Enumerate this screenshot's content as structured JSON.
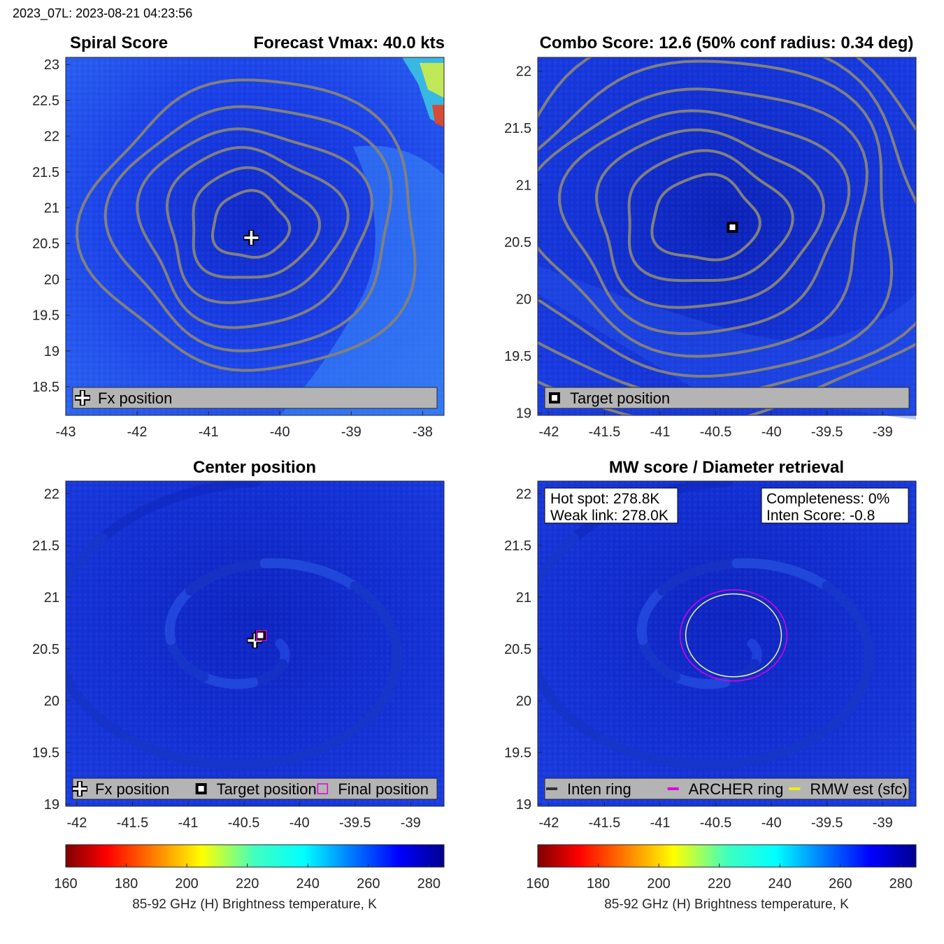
{
  "suptitle": "2023_07L: 2023-08-21 04:23:56",
  "colors": {
    "contour": "#808080",
    "ink": "#000000",
    "legend_bg": "#b4b4b4",
    "archer": "#e000e0",
    "rmw": "#f0f000",
    "final_pos": "#e000e0",
    "background_field": "#1a2fd8"
  },
  "panels": [
    {
      "id": "spiral",
      "title_left": "Spiral Score",
      "title_right": "Forecast Vmax: 40.0 kts",
      "xlim": [
        -43,
        -37.7
      ],
      "ylim": [
        18.1,
        23.1
      ],
      "xticks": [
        -43,
        -42,
        -41,
        -40,
        -39,
        -38
      ],
      "yticks": [
        18.5,
        19,
        19.5,
        20,
        20.5,
        21,
        21.5,
        22,
        22.5,
        23
      ],
      "center": [
        -40.45,
        20.75
      ],
      "markers": [
        {
          "type": "plus",
          "x": -40.4,
          "y": 20.58
        }
      ],
      "legend": [
        {
          "symbol": "plus",
          "label": "Fx position"
        }
      ]
    },
    {
      "id": "combo",
      "title_center": "Combo Score: 12.6  (50% conf radius: 0.34 deg)",
      "xlim": [
        -42.1,
        -38.7
      ],
      "ylim": [
        18.98,
        22.12
      ],
      "xticks": [
        -42,
        -41.5,
        -41,
        -40.5,
        -40,
        -39.5,
        -39
      ],
      "yticks": [
        19,
        19.5,
        20,
        20.5,
        21,
        21.5,
        22
      ],
      "center": [
        -40.6,
        20.7
      ],
      "markers": [
        {
          "type": "square",
          "x": -40.35,
          "y": 20.63
        }
      ],
      "legend": [
        {
          "symbol": "square",
          "label": "Target position"
        }
      ]
    },
    {
      "id": "center",
      "title_center": "Center position",
      "xlim": [
        -42.1,
        -38.7
      ],
      "ylim": [
        18.98,
        22.12
      ],
      "xticks": [
        -42,
        -41.5,
        -41,
        -40.5,
        -40,
        -39.5,
        -39
      ],
      "yticks": [
        19,
        19.5,
        20,
        20.5,
        21,
        21.5,
        22
      ],
      "markers": [
        {
          "type": "plus",
          "x": -40.4,
          "y": 20.58
        },
        {
          "type": "square",
          "x": -40.35,
          "y": 20.63
        },
        {
          "type": "final",
          "x": -40.34,
          "y": 20.63
        }
      ],
      "legend": [
        {
          "symbol": "plus",
          "label": "Fx position"
        },
        {
          "symbol": "square",
          "label": "Target position"
        },
        {
          "symbol": "final",
          "label": "Final position"
        }
      ],
      "colorbar": {
        "ticks": [
          160,
          180,
          200,
          220,
          240,
          260,
          280
        ],
        "range": [
          160,
          285
        ],
        "label": "85-92 GHz (H) Brightness temperature, K"
      }
    },
    {
      "id": "mw",
      "title_center": "MW score / Diameter retrieval",
      "xlim": [
        -42.1,
        -38.7
      ],
      "ylim": [
        18.98,
        22.12
      ],
      "xticks": [
        -42,
        -41.5,
        -41,
        -40.5,
        -40,
        -39.5,
        -39
      ],
      "yticks": [
        19,
        19.5,
        20,
        20.5,
        21,
        21.5,
        22
      ],
      "info_left": [
        "Hot spot: 278.8K",
        "Weak link: 278.0K"
      ],
      "info_right": [
        "Completeness: 0%",
        "Inten Score: -0.8"
      ],
      "rings": [
        {
          "name": "ARCHER ring",
          "cx": -40.34,
          "cy": 20.63,
          "rx": 0.48,
          "ry": 0.44
        },
        {
          "name": "RMW est (sfc)",
          "cx": -40.34,
          "cy": 20.63,
          "rx": 0.43,
          "ry": 0.4
        }
      ],
      "legend": [
        {
          "symbol": "line-dark",
          "label": "Inten ring"
        },
        {
          "symbol": "line-magenta",
          "label": "ARCHER ring"
        },
        {
          "symbol": "line-yellow",
          "label": "RMW est (sfc)"
        }
      ],
      "colorbar": {
        "ticks": [
          160,
          180,
          200,
          220,
          240,
          260,
          280
        ],
        "range": [
          160,
          285
        ],
        "label": "85-92 GHz (H) Brightness temperature, K"
      }
    }
  ],
  "chart_data": [
    {
      "type": "heatmap",
      "title": "Spiral Score",
      "subtitle": "Forecast Vmax: 40.0 kts",
      "xlabel": "",
      "ylabel": "",
      "xlim": [
        -43,
        -37.7
      ],
      "ylim": [
        18.1,
        23.1
      ],
      "overlay": "spiral score contours",
      "points": [
        {
          "name": "Fx position",
          "x": -40.4,
          "y": 20.58
        }
      ]
    },
    {
      "type": "heatmap",
      "title": "Combo Score: 12.6  (50% conf radius: 0.34 deg)",
      "xlim": [
        -42.1,
        -38.7
      ],
      "ylim": [
        18.98,
        22.12
      ],
      "overlay": "combo score contours",
      "points": [
        {
          "name": "Target position",
          "x": -40.35,
          "y": 20.63
        }
      ]
    },
    {
      "type": "heatmap",
      "title": "Center position",
      "xlim": [
        -42.1,
        -38.7
      ],
      "ylim": [
        18.98,
        22.12
      ],
      "points": [
        {
          "name": "Fx position",
          "x": -40.4,
          "y": 20.58
        },
        {
          "name": "Target position",
          "x": -40.35,
          "y": 20.63
        },
        {
          "name": "Final position",
          "x": -40.34,
          "y": 20.63
        }
      ],
      "colorbar_range": [
        160,
        285
      ],
      "colorbar_label": "85-92 GHz (H) Brightness temperature, K"
    },
    {
      "type": "heatmap",
      "title": "MW score / Diameter retrieval",
      "xlim": [
        -42.1,
        -38.7
      ],
      "ylim": [
        18.98,
        22.12
      ],
      "annotations": [
        "Hot spot: 278.8K",
        "Weak link: 278.0K",
        "Completeness: 0%",
        "Inten Score: -0.8"
      ],
      "series": [
        {
          "name": "ARCHER ring",
          "center": [
            -40.34,
            20.63
          ],
          "radius_deg": 0.46
        },
        {
          "name": "RMW est (sfc)",
          "center": [
            -40.34,
            20.63
          ],
          "radius_deg": 0.41
        }
      ],
      "colorbar_range": [
        160,
        285
      ],
      "colorbar_label": "85-92 GHz (H) Brightness temperature, K"
    }
  ]
}
